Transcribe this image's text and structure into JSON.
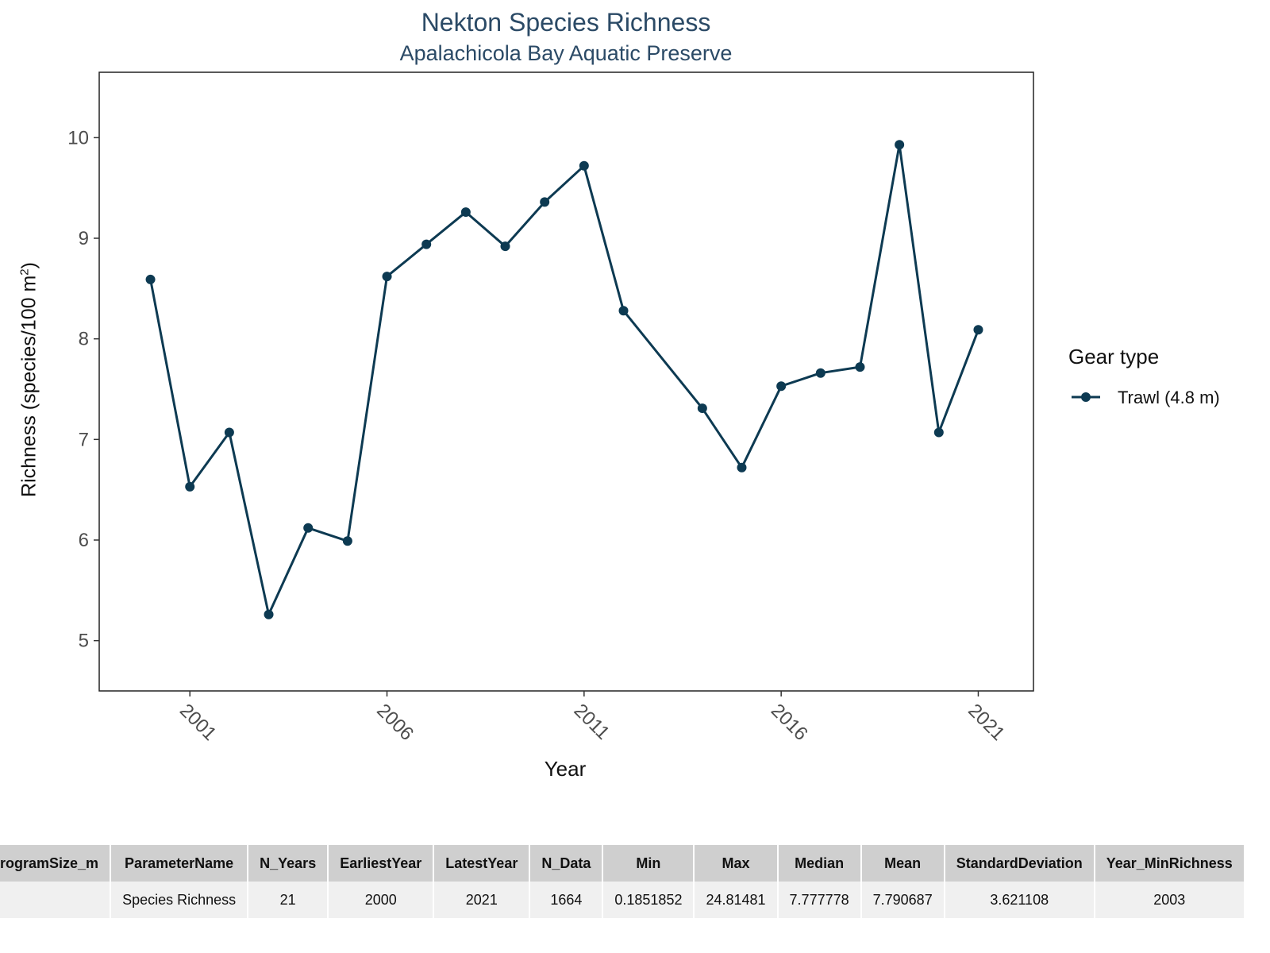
{
  "chart_data": {
    "type": "line",
    "title": "Nekton Species Richness",
    "subtitle": "Apalachicola Bay Aquatic Preserve",
    "xlabel": "Year",
    "ylabel": "Richness (species/100 m",
    "ylabel_superscript": "2",
    "ylabel_close": ")",
    "xlim": [
      1998.7,
      2022.4
    ],
    "ylim": [
      4.5,
      10.65
    ],
    "x_ticks": [
      2001,
      2006,
      2011,
      2016,
      2021
    ],
    "y_ticks": [
      5,
      6,
      7,
      8,
      9,
      10
    ],
    "grid": false,
    "legend": {
      "title": "Gear type",
      "position": "right"
    },
    "series": [
      {
        "name": "Trawl (4.8 m)",
        "color": "#0d3a52",
        "x": [
          2000,
          2001,
          2002,
          2003,
          2004,
          2005,
          2006,
          2007,
          2008,
          2009,
          2010,
          2011,
          2012,
          2014,
          2015,
          2016,
          2017,
          2018,
          2019,
          2020,
          2021
        ],
        "y": [
          8.59,
          6.53,
          7.07,
          5.26,
          6.12,
          5.99,
          8.62,
          8.94,
          9.26,
          8.92,
          9.36,
          9.72,
          8.28,
          7.31,
          6.72,
          7.53,
          7.66,
          7.72,
          9.93,
          7.07,
          8.09
        ]
      }
    ]
  },
  "table": {
    "headers": [
      "ProgramSize_m",
      "ParameterName",
      "N_Years",
      "EarliestYear",
      "LatestYear",
      "N_Data",
      "Min",
      "Max",
      "Median",
      "Mean",
      "StandardDeviation",
      "Year_MinRichness"
    ],
    "rows": [
      [
        "",
        "Species Richness",
        "21",
        "2000",
        "2021",
        "1664",
        "0.1851852",
        "24.81481",
        "7.777778",
        "7.790687",
        "3.621108",
        "2003"
      ]
    ]
  }
}
